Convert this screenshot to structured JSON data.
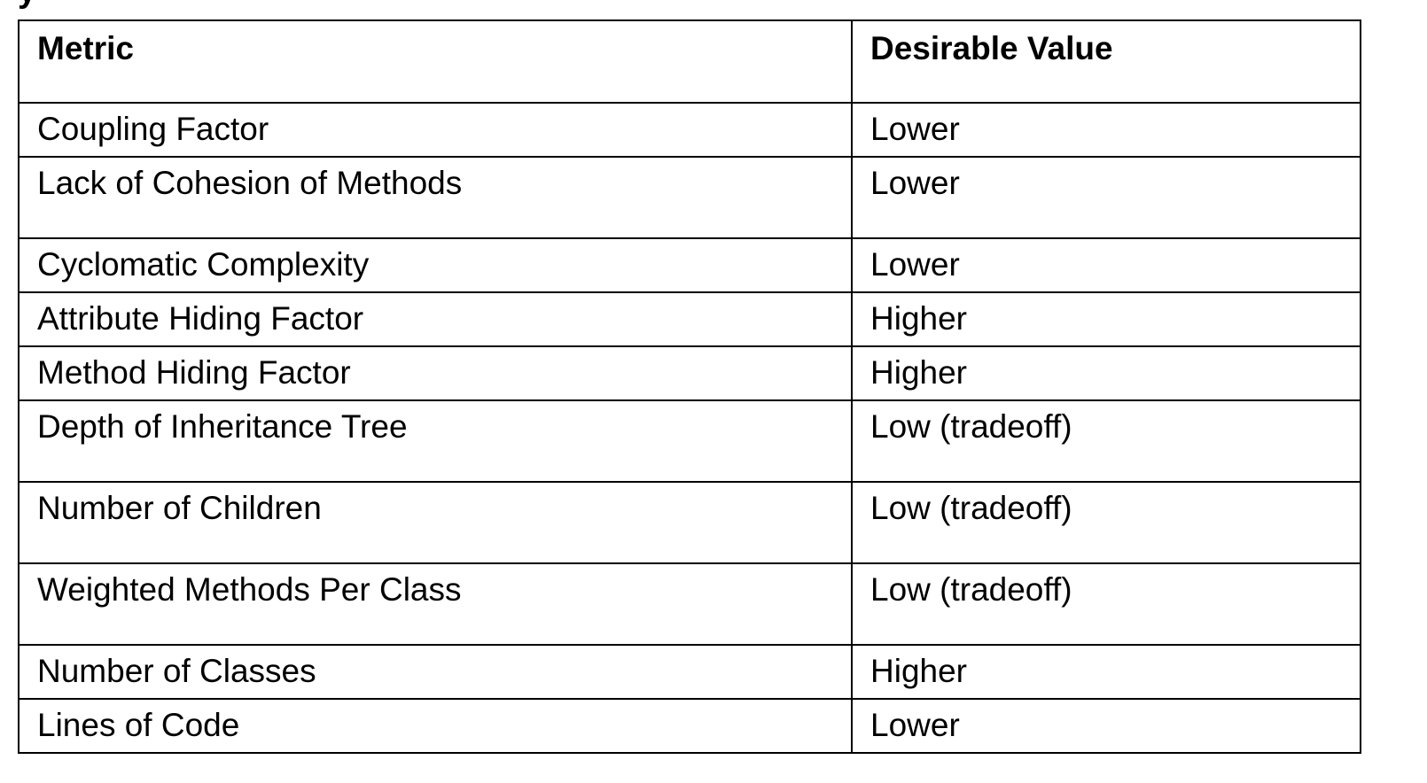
{
  "page_title_fragment": "y",
  "table": {
    "headers": [
      "Metric",
      "Desirable Value"
    ],
    "rows": [
      {
        "metric": "Coupling Factor",
        "value": "Lower",
        "tall": false
      },
      {
        "metric": "Lack of Cohesion of Methods",
        "value": "Lower",
        "tall": true
      },
      {
        "metric": "Cyclomatic Complexity",
        "value": "Lower",
        "tall": false
      },
      {
        "metric": "Attribute Hiding Factor",
        "value": "Higher",
        "tall": false
      },
      {
        "metric": "Method Hiding Factor",
        "value": "Higher",
        "tall": false
      },
      {
        "metric": "Depth of Inheritance Tree",
        "value": "Low (tradeoff)",
        "tall": true
      },
      {
        "metric": "Number of Children",
        "value": "Low (tradeoff)",
        "tall": true
      },
      {
        "metric": "Weighted Methods Per Class",
        "value": "Low (tradeoff)",
        "tall": true
      },
      {
        "metric": "Number of Classes",
        "value": "Higher",
        "tall": false
      },
      {
        "metric": "Lines of Code",
        "value": "Lower",
        "tall": false
      }
    ]
  }
}
